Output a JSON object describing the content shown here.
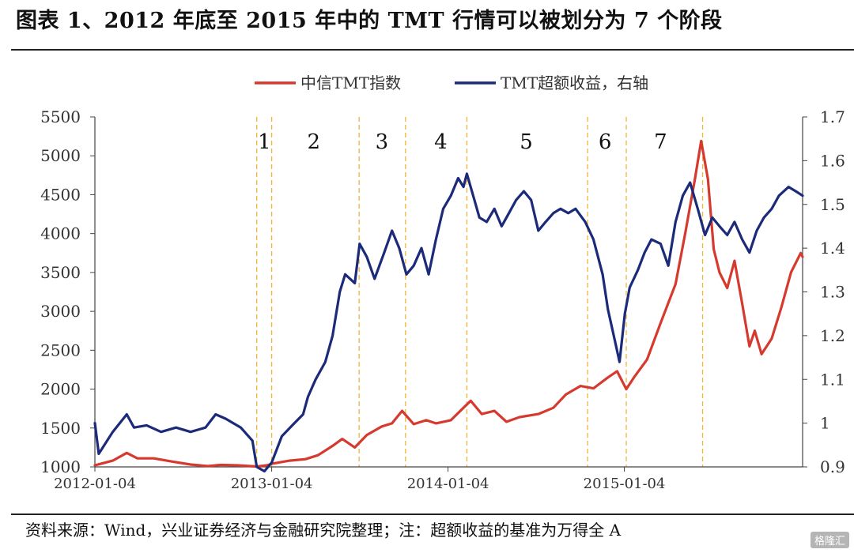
{
  "header": {
    "title": "图表 1、2012 年底至 2015 年中的 TMT 行情可以被划分为 7 个阶段"
  },
  "footer": {
    "source": "资料来源：Wind，兴业证券经济与金融研究院整理；注：超额收益的基准为万得全 A",
    "watermark": "格隆汇"
  },
  "chart_data": {
    "type": "line",
    "legend_position": "top-center",
    "x_ticks": [
      "2012-01-04",
      "2013-01-04",
      "2014-01-04",
      "2015-01-04"
    ],
    "y_left": {
      "ticks": [
        1000,
        1500,
        2000,
        2500,
        3000,
        3500,
        4000,
        4500,
        5000,
        5500
      ],
      "range": [
        1000,
        5500
      ]
    },
    "y_right": {
      "ticks": [
        0.9,
        1.0,
        1.1,
        1.2,
        1.3,
        1.4,
        1.5,
        1.6,
        1.7
      ],
      "range": [
        0.9,
        1.7
      ]
    },
    "phase_dividers": [
      "2012-12-04",
      "2013-01-04",
      "2013-07-04",
      "2013-10-08",
      "2014-02-12",
      "2014-10-20",
      "2015-01-08",
      "2015-06-15"
    ],
    "phases": [
      {
        "label": "1",
        "x": "2012-12-20"
      },
      {
        "label": "2",
        "x": "2013-04-01"
      },
      {
        "label": "3",
        "x": "2013-08-20"
      },
      {
        "label": "4",
        "x": "2013-12-20"
      },
      {
        "label": "5",
        "x": "2014-06-15"
      },
      {
        "label": "6",
        "x": "2014-11-25"
      },
      {
        "label": "7",
        "x": "2015-03-20"
      }
    ],
    "series": [
      {
        "name": "中信TMT指数",
        "axis": "left",
        "color": "#d63a2f",
        "points": [
          [
            "2012-01-04",
            1020
          ],
          [
            "2012-02-10",
            1080
          ],
          [
            "2012-03-10",
            1180
          ],
          [
            "2012-04-01",
            1110
          ],
          [
            "2012-05-05",
            1110
          ],
          [
            "2012-06-10",
            1070
          ],
          [
            "2012-07-20",
            1030
          ],
          [
            "2012-08-25",
            1010
          ],
          [
            "2012-09-20",
            1025
          ],
          [
            "2012-10-25",
            1020
          ],
          [
            "2012-12-04",
            1005
          ],
          [
            "2012-12-25",
            1020
          ],
          [
            "2013-01-04",
            1040
          ],
          [
            "2013-02-10",
            1080
          ],
          [
            "2013-03-15",
            1100
          ],
          [
            "2013-04-10",
            1150
          ],
          [
            "2013-05-10",
            1270
          ],
          [
            "2013-05-30",
            1360
          ],
          [
            "2013-06-25",
            1250
          ],
          [
            "2013-07-20",
            1410
          ],
          [
            "2013-08-20",
            1520
          ],
          [
            "2013-09-10",
            1560
          ],
          [
            "2013-10-01",
            1720
          ],
          [
            "2013-10-25",
            1550
          ],
          [
            "2013-11-20",
            1600
          ],
          [
            "2013-12-10",
            1560
          ],
          [
            "2014-01-10",
            1600
          ],
          [
            "2014-02-05",
            1760
          ],
          [
            "2014-02-20",
            1850
          ],
          [
            "2014-03-15",
            1680
          ],
          [
            "2014-04-10",
            1720
          ],
          [
            "2014-05-05",
            1580
          ],
          [
            "2014-06-01",
            1640
          ],
          [
            "2014-07-10",
            1680
          ],
          [
            "2014-08-10",
            1760
          ],
          [
            "2014-09-05",
            1930
          ],
          [
            "2014-10-05",
            2040
          ],
          [
            "2014-11-01",
            2010
          ],
          [
            "2014-12-01",
            2150
          ],
          [
            "2014-12-20",
            2230
          ],
          [
            "2015-01-08",
            2000
          ],
          [
            "2015-01-25",
            2160
          ],
          [
            "2015-02-20",
            2380
          ],
          [
            "2015-03-20",
            2850
          ],
          [
            "2015-04-20",
            3350
          ],
          [
            "2015-05-10",
            4000
          ],
          [
            "2015-05-30",
            4700
          ],
          [
            "2015-06-12",
            5190
          ],
          [
            "2015-06-26",
            4700
          ],
          [
            "2015-07-08",
            3800
          ],
          [
            "2015-07-20",
            3500
          ],
          [
            "2015-08-05",
            3300
          ],
          [
            "2015-08-20",
            3650
          ],
          [
            "2015-09-05",
            3100
          ],
          [
            "2015-09-20",
            2550
          ],
          [
            "2015-10-01",
            2750
          ],
          [
            "2015-10-15",
            2450
          ],
          [
            "2015-11-05",
            2650
          ],
          [
            "2015-11-25",
            3050
          ],
          [
            "2015-12-15",
            3500
          ],
          [
            "2016-01-04",
            3750
          ],
          [
            "2016-01-08",
            3700
          ]
        ]
      },
      {
        "name": "TMT超额收益，右轴",
        "axis": "right",
        "color": "#1c2a7a",
        "points": [
          [
            "2012-01-04",
            1.0
          ],
          [
            "2012-01-12",
            0.93
          ],
          [
            "2012-02-10",
            0.98
          ],
          [
            "2012-03-10",
            1.02
          ],
          [
            "2012-03-25",
            0.99
          ],
          [
            "2012-04-20",
            0.995
          ],
          [
            "2012-05-20",
            0.98
          ],
          [
            "2012-06-20",
            0.99
          ],
          [
            "2012-07-20",
            0.98
          ],
          [
            "2012-08-20",
            0.99
          ],
          [
            "2012-09-10",
            1.02
          ],
          [
            "2012-10-01",
            1.01
          ],
          [
            "2012-11-01",
            0.99
          ],
          [
            "2012-11-25",
            0.96
          ],
          [
            "2012-12-04",
            0.9
          ],
          [
            "2012-12-20",
            0.89
          ],
          [
            "2013-01-04",
            0.91
          ],
          [
            "2013-01-25",
            0.97
          ],
          [
            "2013-02-20",
            1.0
          ],
          [
            "2013-03-10",
            1.02
          ],
          [
            "2013-03-20",
            1.06
          ],
          [
            "2013-04-05",
            1.1
          ],
          [
            "2013-04-25",
            1.14
          ],
          [
            "2013-05-10",
            1.2
          ],
          [
            "2013-05-25",
            1.3
          ],
          [
            "2013-06-05",
            1.34
          ],
          [
            "2013-06-25",
            1.32
          ],
          [
            "2013-07-05",
            1.41
          ],
          [
            "2013-07-20",
            1.38
          ],
          [
            "2013-08-05",
            1.33
          ],
          [
            "2013-08-25",
            1.39
          ],
          [
            "2013-09-10",
            1.44
          ],
          [
            "2013-09-25",
            1.4
          ],
          [
            "2013-10-10",
            1.34
          ],
          [
            "2013-10-25",
            1.36
          ],
          [
            "2013-11-10",
            1.4
          ],
          [
            "2013-11-25",
            1.34
          ],
          [
            "2013-12-10",
            1.42
          ],
          [
            "2013-12-25",
            1.49
          ],
          [
            "2014-01-10",
            1.52
          ],
          [
            "2014-01-25",
            1.56
          ],
          [
            "2014-02-05",
            1.54
          ],
          [
            "2014-02-12",
            1.57
          ],
          [
            "2014-02-25",
            1.52
          ],
          [
            "2014-03-10",
            1.47
          ],
          [
            "2014-03-25",
            1.46
          ],
          [
            "2014-04-10",
            1.49
          ],
          [
            "2014-04-25",
            1.45
          ],
          [
            "2014-05-10",
            1.48
          ],
          [
            "2014-05-25",
            1.51
          ],
          [
            "2014-06-10",
            1.53
          ],
          [
            "2014-06-25",
            1.51
          ],
          [
            "2014-07-10",
            1.44
          ],
          [
            "2014-07-25",
            1.46
          ],
          [
            "2014-08-10",
            1.48
          ],
          [
            "2014-08-25",
            1.49
          ],
          [
            "2014-09-10",
            1.48
          ],
          [
            "2014-09-25",
            1.49
          ],
          [
            "2014-10-15",
            1.46
          ],
          [
            "2014-11-01",
            1.42
          ],
          [
            "2014-11-20",
            1.34
          ],
          [
            "2014-12-01",
            1.26
          ],
          [
            "2014-12-15",
            1.19
          ],
          [
            "2014-12-25",
            1.14
          ],
          [
            "2015-01-05",
            1.25
          ],
          [
            "2015-01-15",
            1.31
          ],
          [
            "2015-02-01",
            1.35
          ],
          [
            "2015-02-15",
            1.39
          ],
          [
            "2015-03-01",
            1.42
          ],
          [
            "2015-03-20",
            1.41
          ],
          [
            "2015-04-05",
            1.36
          ],
          [
            "2015-04-20",
            1.46
          ],
          [
            "2015-05-05",
            1.52
          ],
          [
            "2015-05-20",
            1.55
          ],
          [
            "2015-06-05",
            1.49
          ],
          [
            "2015-06-20",
            1.43
          ],
          [
            "2015-07-05",
            1.47
          ],
          [
            "2015-07-20",
            1.45
          ],
          [
            "2015-08-05",
            1.43
          ],
          [
            "2015-08-20",
            1.46
          ],
          [
            "2015-09-05",
            1.42
          ],
          [
            "2015-09-20",
            1.39
          ],
          [
            "2015-10-05",
            1.44
          ],
          [
            "2015-10-20",
            1.47
          ],
          [
            "2015-11-05",
            1.49
          ],
          [
            "2015-11-20",
            1.52
          ],
          [
            "2015-12-10",
            1.54
          ],
          [
            "2015-12-25",
            1.53
          ],
          [
            "2016-01-08",
            1.52
          ]
        ]
      }
    ]
  }
}
